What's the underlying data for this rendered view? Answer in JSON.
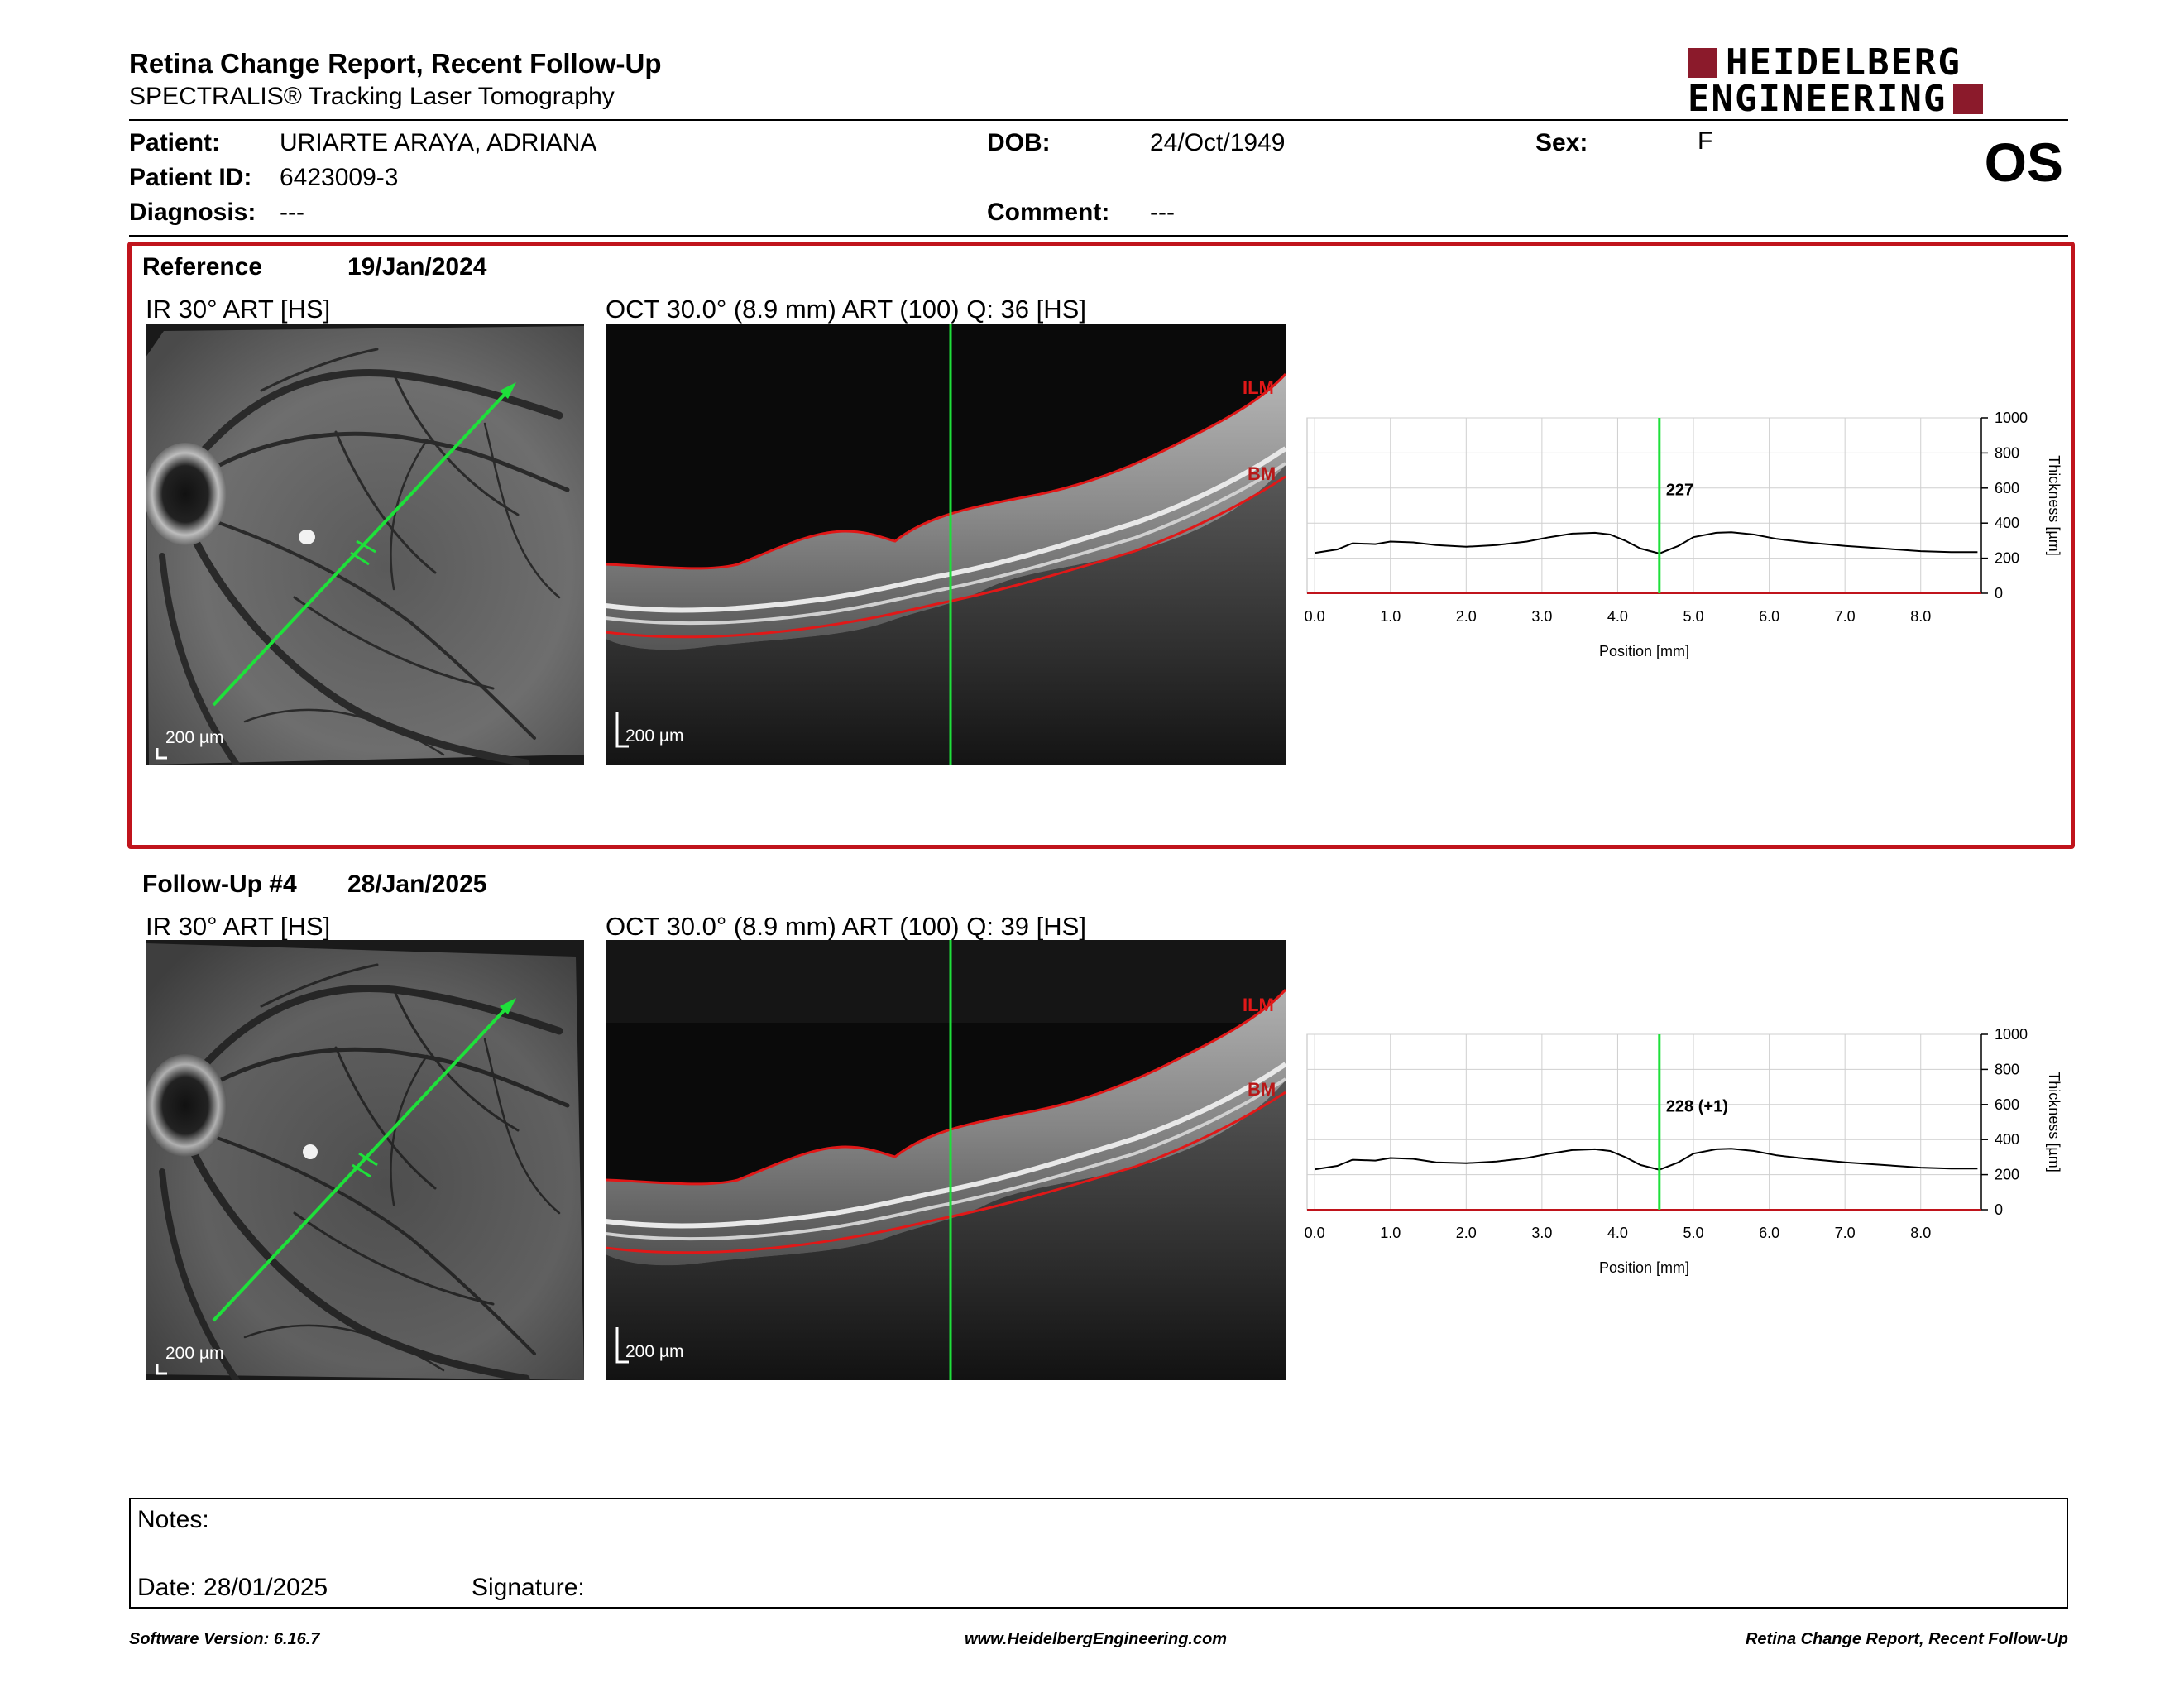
{
  "header": {
    "title": "Retina Change Report, Recent Follow-Up",
    "subtitle": "SPECTRALIS® Tracking Laser Tomography",
    "logo_line1": "HEIDELBERG",
    "logo_line2": "ENGINEERING",
    "brand_color": "#8b1a2b"
  },
  "patient": {
    "patient_label": "Patient:",
    "patient_name": "URIARTE ARAYA, ADRIANA",
    "id_label": "Patient ID:",
    "id_value": "6423009-3",
    "diagnosis_label": "Diagnosis:",
    "diagnosis_value": "---",
    "dob_label": "DOB:",
    "dob_value": "24/Oct/1949",
    "comment_label": "Comment:",
    "comment_value": "---",
    "sex_label": "Sex:",
    "sex_value": "F",
    "eye": "OS"
  },
  "reference": {
    "heading": "Reference",
    "date": "19/Jan/2024",
    "ir_label": "IR 30° ART [HS]",
    "oct_label": "OCT 30.0° (8.9 mm) ART (100) Q: 36 [HS]",
    "scale_text": "200 µm",
    "ilm": "ILM",
    "bm": "BM",
    "marker_value": "227",
    "frame_color": "#c0141c"
  },
  "followup": {
    "heading": "Follow-Up #4",
    "date": "28/Jan/2025",
    "ir_label": "IR 30° ART [HS]",
    "oct_label": "OCT 30.0° (8.9 mm) ART (100) Q: 39 [HS]",
    "scale_text": "200 µm",
    "ilm": "ILM",
    "bm": "BM",
    "marker_value": "228 (+1)"
  },
  "chart_data": [
    {
      "type": "line",
      "x_ticks": [
        "0.0",
        "1.0",
        "2.0",
        "3.0",
        "4.0",
        "5.0",
        "6.0",
        "7.0",
        "8.0"
      ],
      "y_ticks": [
        "0",
        "200",
        "400",
        "600",
        "800",
        "1000"
      ],
      "xlabel": "Position [mm]",
      "ylabel": "Thickness [µm]",
      "xlim": [
        -0.1,
        8.8
      ],
      "ylim": [
        0,
        1000
      ],
      "marker_x": 4.55,
      "marker_label": "227",
      "series": [
        {
          "x": [
            0.0,
            0.3,
            0.5,
            0.8,
            1.0,
            1.3,
            1.6,
            2.0,
            2.4,
            2.8,
            3.1,
            3.4,
            3.7,
            3.9,
            4.1,
            4.3,
            4.55,
            4.8,
            5.0,
            5.3,
            5.5,
            5.8,
            6.1,
            6.5,
            7.0,
            7.5,
            8.0,
            8.4,
            8.75
          ],
          "y": [
            230,
            250,
            285,
            280,
            295,
            290,
            275,
            265,
            275,
            295,
            320,
            340,
            345,
            335,
            300,
            255,
            227,
            270,
            320,
            345,
            348,
            335,
            310,
            290,
            270,
            255,
            240,
            235,
            235
          ]
        }
      ],
      "grid": true
    },
    {
      "type": "line",
      "x_ticks": [
        "0.0",
        "1.0",
        "2.0",
        "3.0",
        "4.0",
        "5.0",
        "6.0",
        "7.0",
        "8.0"
      ],
      "y_ticks": [
        "0",
        "200",
        "400",
        "600",
        "800",
        "1000"
      ],
      "xlabel": "Position [mm]",
      "ylabel": "Thickness [µm]",
      "xlim": [
        -0.1,
        8.8
      ],
      "ylim": [
        0,
        1000
      ],
      "marker_x": 4.55,
      "marker_label": "228 (+1)",
      "series": [
        {
          "x": [
            0.0,
            0.3,
            0.5,
            0.8,
            1.0,
            1.3,
            1.6,
            2.0,
            2.4,
            2.8,
            3.1,
            3.4,
            3.7,
            3.9,
            4.1,
            4.3,
            4.55,
            4.8,
            5.0,
            5.3,
            5.5,
            5.8,
            6.1,
            6.5,
            7.0,
            7.5,
            8.0,
            8.4,
            8.75
          ],
          "y": [
            230,
            250,
            285,
            280,
            295,
            290,
            270,
            265,
            275,
            295,
            320,
            340,
            345,
            335,
            300,
            255,
            228,
            270,
            320,
            345,
            348,
            335,
            310,
            290,
            270,
            255,
            240,
            235,
            235
          ]
        }
      ],
      "grid": true
    }
  ],
  "notes": {
    "notes_label": "Notes:",
    "date_label": "Date: 28/01/2025",
    "signature_label": "Signature:"
  },
  "footer": {
    "software": "Software Version: 6.16.7",
    "website": "www.HeidelbergEngineering.com",
    "report_name": "Retina Change Report, Recent Follow-Up"
  }
}
